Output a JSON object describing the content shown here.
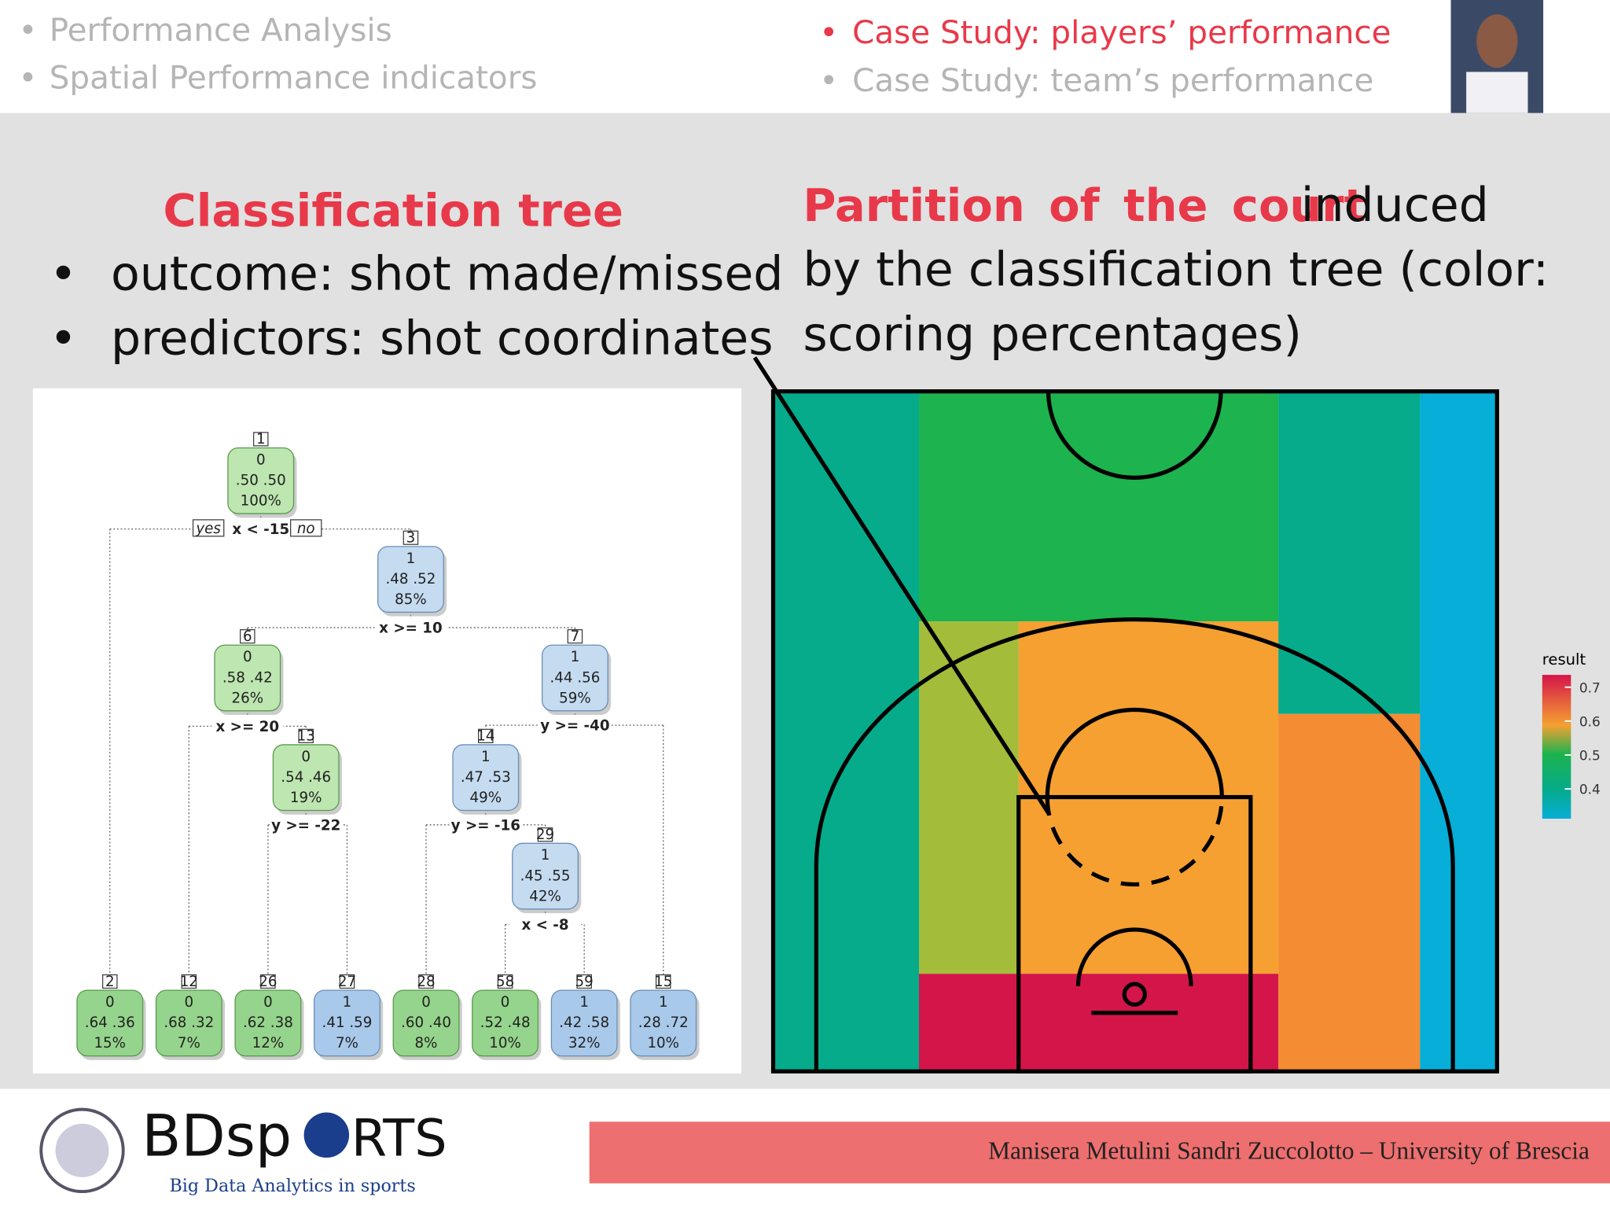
{
  "nav": {
    "left": [
      "Performance Analysis",
      "Spatial Performance indicators"
    ],
    "right": [
      "Case Study: players’ performance",
      "Case Study: team’s performance"
    ]
  },
  "left_panel": {
    "title": "Classification tree",
    "bullets": [
      "outcome: shot made/missed",
      "predictors: shot coordinates"
    ]
  },
  "right_panel": {
    "highlight": "Partition of the court",
    "lines": [
      "induced",
      "by the classification tree (color:",
      "scoring percentages)"
    ]
  },
  "tree": {
    "yes": "yes",
    "no": "no",
    "nodes": [
      {
        "id": "1",
        "class": "0",
        "probs": ".50  .50",
        "pct": "100%"
      },
      {
        "id": "3",
        "class": "1",
        "probs": ".48  .52",
        "pct": "85%"
      },
      {
        "id": "6",
        "class": "0",
        "probs": ".58  .42",
        "pct": "26%"
      },
      {
        "id": "7",
        "class": "1",
        "probs": ".44  .56",
        "pct": "59%"
      },
      {
        "id": "13",
        "class": "0",
        "probs": ".54  .46",
        "pct": "19%"
      },
      {
        "id": "14",
        "class": "1",
        "probs": ".47  .53",
        "pct": "49%"
      },
      {
        "id": "29",
        "class": "1",
        "probs": ".45  .55",
        "pct": "42%"
      },
      {
        "id": "2",
        "class": "0",
        "probs": ".64  .36",
        "pct": "15%"
      },
      {
        "id": "12",
        "class": "0",
        "probs": ".68  .32",
        "pct": "7%"
      },
      {
        "id": "26",
        "class": "0",
        "probs": ".62  .38",
        "pct": "12%"
      },
      {
        "id": "27",
        "class": "1",
        "probs": ".41  .59",
        "pct": "7%"
      },
      {
        "id": "28",
        "class": "0",
        "probs": ".60  .40",
        "pct": "8%"
      },
      {
        "id": "58",
        "class": "0",
        "probs": ".52  .48",
        "pct": "10%"
      },
      {
        "id": "59",
        "class": "1",
        "probs": ".42  .58",
        "pct": "32%"
      },
      {
        "id": "15",
        "class": "1",
        "probs": ".28  .72",
        "pct": "10%"
      }
    ],
    "splits": [
      "x < -15",
      "x >= 10",
      "x >= 20",
      "y >= -40",
      "y >= -22",
      "y >= -16",
      "x < -8"
    ]
  },
  "legend": {
    "title": "result",
    "ticks": [
      "0.7",
      "0.6",
      "0.5",
      "0.4"
    ]
  },
  "footer": {
    "logo": "BDsp",
    "logo_end": "RTS",
    "tagline": "Big Data Analytics in sports",
    "authors": "Manisera Metulini Sandri Zuccolotto – University of Brescia"
  }
}
